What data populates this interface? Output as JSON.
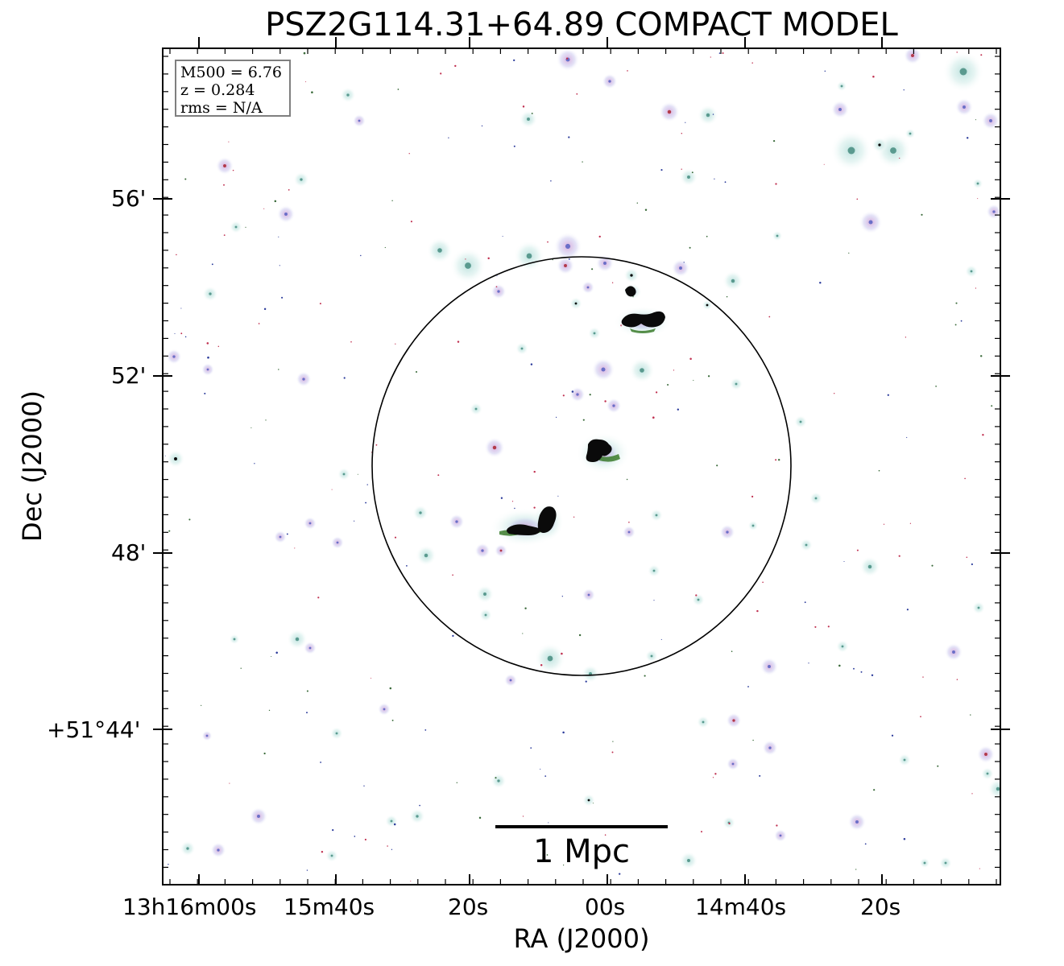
{
  "title": "PSZ2G114.31+64.89 COMPACT MODEL",
  "axes": {
    "xlabel": "RA (J2000)",
    "ylabel": "Dec (J2000)",
    "x_ticks": [
      "13h16m00s",
      "15m40s",
      "20s",
      "00s",
      "14m40s",
      "20s"
    ],
    "y_ticks": [
      "56'",
      "52'",
      "48'",
      "+51°44'"
    ]
  },
  "info": {
    "line1": "M500 = 6.76",
    "line2": "z = 0.284",
    "line3": "rms = N/A"
  },
  "scalebar": {
    "label": "1 Mpc"
  },
  "colors": {
    "background": "#ffffff",
    "frame": "#000000",
    "source_halo": "#cfe9e6",
    "source_core_blue": "#6a6fc8",
    "source_core_red": "#b23a4a",
    "source_core_dark": "#0a0a0a",
    "source_core_green": "#3a7a2a",
    "info_border": "#7f7f7f"
  }
}
